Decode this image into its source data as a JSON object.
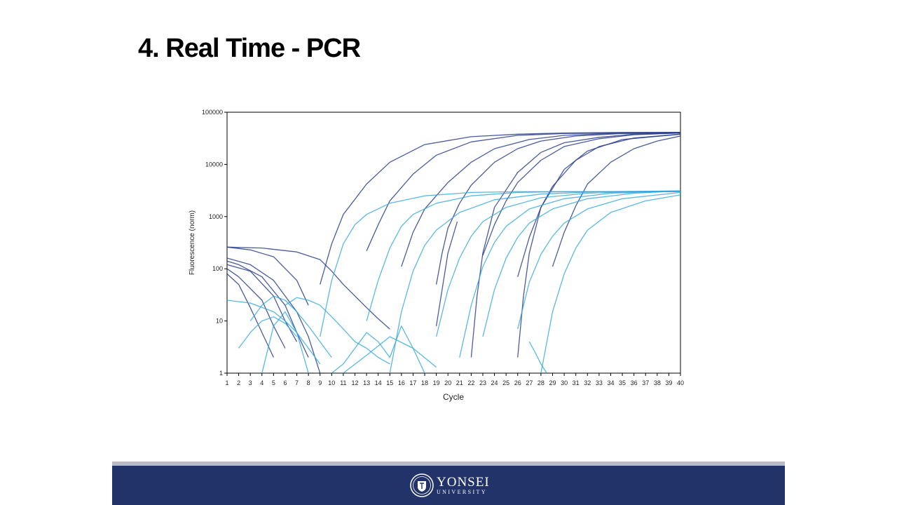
{
  "slide": {
    "title": "4. Real Time - PCR"
  },
  "footer": {
    "logo_name": "YONSEI",
    "logo_sub": "UNIVERSITY"
  },
  "colors": {
    "dark_series": "#2a3f8c",
    "light_series": "#2fa8dc",
    "footer_bg": "#22336a",
    "footer_rule": "#b9bcc4"
  },
  "chart_data": {
    "type": "line",
    "title": "",
    "xlabel": "Cycle",
    "ylabel": "Fluorescence (norm)",
    "x_ticks": [
      1,
      2,
      3,
      4,
      5,
      6,
      7,
      8,
      9,
      10,
      11,
      12,
      13,
      14,
      15,
      16,
      17,
      18,
      19,
      20,
      21,
      22,
      23,
      24,
      25,
      26,
      27,
      28,
      29,
      30,
      31,
      32,
      33,
      34,
      35,
      36,
      37,
      38,
      39,
      40
    ],
    "y_ticks": [
      1,
      10,
      100,
      1000,
      10000,
      100000
    ],
    "y_tick_labels": [
      "1",
      "10",
      "100",
      "1000",
      "10000",
      "100000"
    ],
    "xlim": [
      1,
      40
    ],
    "ylim": [
      1,
      100000
    ],
    "y_scale": "log",
    "grid": false,
    "legend": "none",
    "series": [
      {
        "group": "dark",
        "x": [
          1,
          3,
          5,
          7,
          8
        ],
        "y": [
          260,
          230,
          170,
          60,
          20
        ]
      },
      {
        "group": "dark",
        "x": [
          9,
          10,
          11,
          13,
          15,
          18,
          22,
          26,
          30,
          35,
          40
        ],
        "y": [
          50,
          300,
          1100,
          4200,
          11000,
          24000,
          34000,
          38000,
          40000,
          41000,
          41000
        ]
      },
      {
        "group": "dark",
        "x": [
          1,
          4,
          7,
          9,
          10,
          11,
          12,
          13,
          14,
          15
        ],
        "y": [
          260,
          250,
          210,
          150,
          90,
          50,
          30,
          18,
          11,
          7
        ]
      },
      {
        "group": "dark",
        "x": [
          13,
          14,
          15,
          17,
          19,
          22,
          26,
          30,
          35,
          40
        ],
        "y": [
          220,
          700,
          2000,
          6500,
          15000,
          27000,
          36000,
          39000,
          40000,
          41000
        ]
      },
      {
        "group": "dark",
        "x": [
          1,
          3,
          5,
          7,
          8,
          9
        ],
        "y": [
          160,
          120,
          60,
          15,
          5,
          1
        ]
      },
      {
        "group": "dark",
        "x": [
          16,
          17,
          18,
          20,
          22,
          24,
          27,
          30,
          35,
          40
        ],
        "y": [
          110,
          500,
          1400,
          4500,
          11000,
          20000,
          30000,
          36000,
          40000,
          41000
        ]
      },
      {
        "group": "dark",
        "x": [
          1,
          2,
          4,
          6,
          7,
          8
        ],
        "y": [
          140,
          120,
          70,
          20,
          6,
          2
        ]
      },
      {
        "group": "dark",
        "x": [
          19,
          19.5,
          20,
          21,
          22,
          24,
          26,
          28,
          31,
          35,
          40
        ],
        "y": [
          50,
          200,
          600,
          1800,
          4000,
          11000,
          20000,
          28000,
          35000,
          39000,
          40000
        ]
      },
      {
        "group": "dark",
        "x": [
          1,
          3,
          5,
          6,
          7
        ],
        "y": [
          120,
          90,
          30,
          10,
          4
        ]
      },
      {
        "group": "dark",
        "x": [
          19,
          19.5,
          20,
          20.8
        ],
        "y": [
          8,
          40,
          200,
          800
        ]
      },
      {
        "group": "dark",
        "x": [
          22,
          22.5,
          23,
          24,
          26,
          28,
          30,
          33,
          36,
          40
        ],
        "y": [
          2,
          30,
          200,
          1500,
          7000,
          17000,
          26000,
          33000,
          38000,
          40000
        ]
      },
      {
        "group": "dark",
        "x": [
          1,
          2,
          4,
          5,
          6
        ],
        "y": [
          100,
          70,
          25,
          8,
          3
        ]
      },
      {
        "group": "dark",
        "x": [
          23,
          24,
          25,
          26,
          28,
          30,
          33,
          36,
          40
        ],
        "y": [
          180,
          700,
          2000,
          4500,
          12000,
          22000,
          31000,
          37000,
          40000
        ]
      },
      {
        "group": "dark",
        "x": [
          26,
          27,
          28,
          29,
          31,
          33,
          36,
          40
        ],
        "y": [
          70,
          400,
          1500,
          3800,
          12000,
          22000,
          32000,
          38000
        ]
      },
      {
        "group": "dark",
        "x": [
          26,
          26.5,
          27,
          28,
          30,
          32,
          35,
          40
        ],
        "y": [
          2,
          30,
          200,
          1500,
          8000,
          18000,
          30000,
          38000
        ]
      },
      {
        "group": "dark",
        "x": [
          29,
          30,
          31,
          32,
          34,
          36,
          38,
          40
        ],
        "y": [
          110,
          500,
          1600,
          4200,
          11000,
          20000,
          28000,
          35000
        ]
      },
      {
        "group": "dark",
        "x": [
          1,
          2,
          3,
          4,
          5
        ],
        "y": [
          80,
          50,
          18,
          6,
          2
        ]
      },
      {
        "group": "light",
        "x": [
          9,
          10,
          11,
          12,
          13,
          15,
          18,
          22,
          26,
          30,
          35,
          40
        ],
        "y": [
          5,
          60,
          300,
          700,
          1100,
          1800,
          2500,
          2900,
          3000,
          3000,
          3000,
          3000
        ]
      },
      {
        "group": "light",
        "x": [
          13,
          14,
          15,
          16,
          17,
          19,
          22,
          26,
          30,
          35,
          40
        ],
        "y": [
          10,
          60,
          250,
          650,
          1100,
          1800,
          2500,
          2900,
          3000,
          3000,
          3000
        ]
      },
      {
        "group": "light",
        "x": [
          15,
          16,
          17,
          18,
          19,
          21,
          24,
          28,
          33,
          40
        ],
        "y": [
          1,
          15,
          90,
          280,
          550,
          1200,
          2100,
          2700,
          3000,
          3100
        ]
      },
      {
        "group": "light",
        "x": [
          19,
          20,
          21,
          22,
          23,
          25,
          28,
          32,
          36,
          40
        ],
        "y": [
          5,
          40,
          160,
          420,
          800,
          1500,
          2300,
          2800,
          3000,
          3100
        ]
      },
      {
        "group": "light",
        "x": [
          21,
          22,
          23,
          24,
          25,
          27,
          30,
          34,
          40
        ],
        "y": [
          2,
          20,
          110,
          320,
          650,
          1400,
          2200,
          2800,
          3100
        ]
      },
      {
        "group": "light",
        "x": [
          23,
          24,
          25,
          26,
          27,
          29,
          32,
          36,
          40
        ],
        "y": [
          5,
          40,
          160,
          400,
          750,
          1400,
          2200,
          2800,
          3100
        ]
      },
      {
        "group": "light",
        "x": [
          26,
          27,
          28,
          29,
          30,
          32,
          35,
          40
        ],
        "y": [
          7,
          55,
          190,
          420,
          750,
          1400,
          2200,
          2900
        ]
      },
      {
        "group": "light",
        "x": [
          28,
          29,
          30,
          31,
          32,
          34,
          37,
          40
        ],
        "y": [
          1,
          15,
          80,
          250,
          550,
          1200,
          2000,
          2600
        ]
      },
      {
        "group": "light",
        "x": [
          1,
          3,
          5,
          6,
          7,
          8,
          9
        ],
        "y": [
          25,
          22,
          15,
          10,
          6,
          3,
          1.5
        ]
      },
      {
        "group": "light",
        "x": [
          3,
          4,
          5,
          6,
          7,
          8,
          9,
          10
        ],
        "y": [
          10,
          20,
          30,
          25,
          15,
          8,
          4,
          2
        ]
      },
      {
        "group": "light",
        "x": [
          4,
          5,
          6,
          7,
          8
        ],
        "y": [
          1,
          8,
          15,
          6,
          1
        ]
      },
      {
        "group": "light",
        "x": [
          6,
          7,
          8,
          9,
          10,
          11,
          12,
          13,
          14,
          15
        ],
        "y": [
          20,
          28,
          25,
          20,
          12,
          7,
          4,
          3,
          2,
          1.5
        ]
      },
      {
        "group": "light",
        "x": [
          10,
          11,
          12,
          13,
          14,
          15,
          16,
          17,
          18
        ],
        "y": [
          1,
          1.5,
          3,
          6,
          4,
          2,
          8,
          3,
          1
        ]
      },
      {
        "group": "light",
        "x": [
          2,
          3,
          4,
          5,
          6,
          7
        ],
        "y": [
          3,
          6,
          10,
          12,
          9,
          5
        ]
      },
      {
        "group": "light",
        "x": [
          27,
          27.5,
          28,
          28.5
        ],
        "y": [
          4,
          2.5,
          1.5,
          1
        ]
      },
      {
        "group": "light",
        "x": [
          11,
          13,
          15,
          17,
          19
        ],
        "y": [
          1,
          2.2,
          5,
          3,
          1.3
        ]
      }
    ]
  }
}
